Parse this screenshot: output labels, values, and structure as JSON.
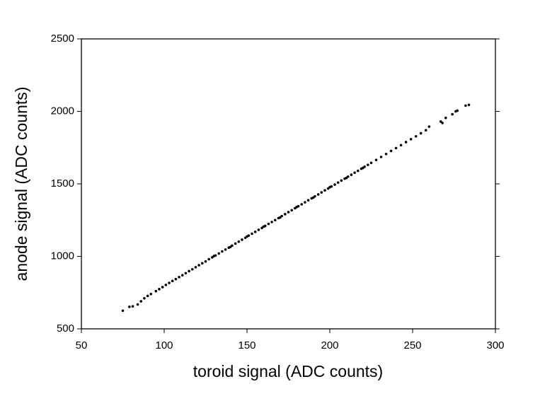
{
  "chart_data": {
    "type": "scatter",
    "xlabel": "toroid signal (ADC counts)",
    "ylabel": "anode signal (ADC counts)",
    "color": "#000000",
    "xlim": [
      50,
      300
    ],
    "xticks": [
      50,
      100,
      150,
      200,
      250,
      300
    ],
    "ylim": [
      500,
      2500
    ],
    "yticks": [
      500,
      1000,
      1500,
      2000,
      2500
    ],
    "x": [
      75,
      79,
      81,
      84,
      86,
      88,
      90,
      92,
      95,
      97,
      99,
      101,
      103,
      105,
      107,
      109,
      111,
      113,
      115,
      117,
      119,
      121,
      123,
      125,
      127,
      129,
      131,
      133,
      135,
      137,
      139,
      141,
      143,
      145,
      147,
      149,
      151,
      153,
      155,
      157,
      159,
      161,
      163,
      165,
      167,
      169,
      171,
      173,
      175,
      177,
      179,
      181,
      183,
      185,
      187,
      189,
      191,
      193,
      195,
      197,
      199,
      201,
      203,
      205,
      207,
      209,
      211,
      213,
      215,
      217,
      219,
      221,
      223,
      225,
      228,
      231,
      234,
      237,
      240,
      243,
      246,
      249,
      252,
      255,
      258,
      260,
      267,
      270,
      274,
      277,
      282,
      284,
      130,
      140,
      150,
      160,
      170,
      180,
      190,
      200,
      210,
      220,
      268,
      276
    ],
    "values": [
      625,
      652,
      655,
      668,
      690,
      711,
      727,
      740,
      760,
      774,
      788,
      803,
      817,
      830,
      843,
      857,
      870,
      884,
      898,
      911,
      925,
      939,
      952,
      965,
      980,
      993,
      1006,
      1020,
      1034,
      1047,
      1060,
      1074,
      1088,
      1101,
      1115,
      1128,
      1143,
      1156,
      1169,
      1183,
      1196,
      1210,
      1224,
      1237,
      1250,
      1264,
      1278,
      1291,
      1305,
      1318,
      1332,
      1346,
      1359,
      1373,
      1387,
      1400,
      1414,
      1427,
      1441,
      1455,
      1468,
      1482,
      1495,
      1509,
      1523,
      1536,
      1550,
      1563,
      1577,
      1590,
      1604,
      1618,
      1631,
      1645,
      1665,
      1686,
      1706,
      1727,
      1747,
      1767,
      1788,
      1808,
      1828,
      1849,
      1870,
      1895,
      1930,
      1955,
      1980,
      2005,
      2040,
      2045,
      1002,
      1065,
      1137,
      1205,
      1268,
      1340,
      1405,
      1477,
      1541,
      1610,
      1920,
      2000
    ]
  }
}
